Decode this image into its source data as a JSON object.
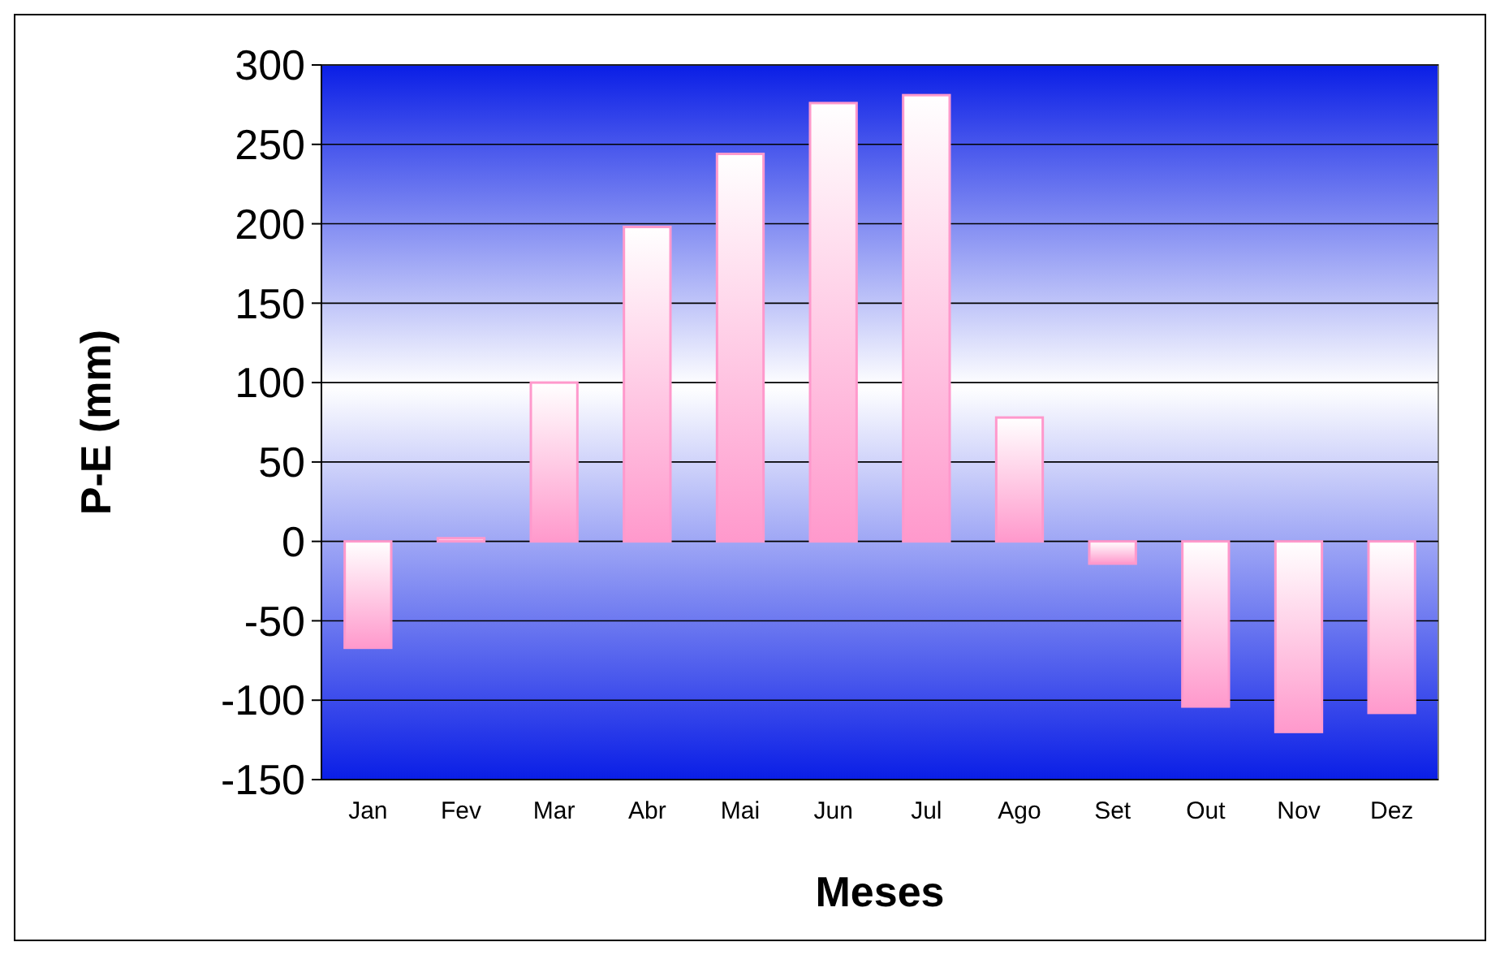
{
  "chart_data": {
    "type": "bar",
    "xlabel": "Meses",
    "ylabel": "P-E (mm)",
    "categories": [
      "Jan",
      "Fev",
      "Mar",
      "Abr",
      "Mai",
      "Jun",
      "Jul",
      "Ago",
      "Set",
      "Out",
      "Nov",
      "Dez"
    ],
    "values": [
      -67,
      2,
      100,
      198,
      244,
      276,
      281,
      78,
      -14,
      -104,
      -120,
      -108
    ],
    "color": "#ff99cc",
    "ylim": [
      -150,
      300
    ],
    "yticks": [
      -150,
      -100,
      -50,
      0,
      50,
      100,
      150,
      200,
      250,
      300
    ],
    "grid": "y"
  }
}
